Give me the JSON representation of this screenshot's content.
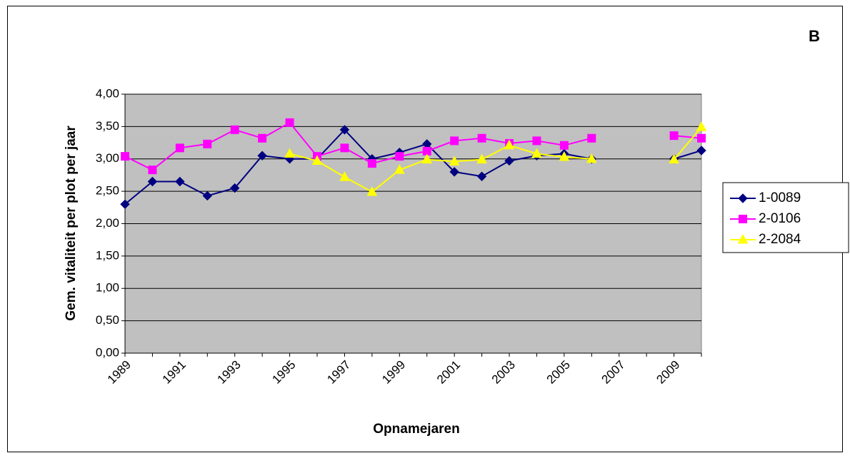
{
  "chart_data": {
    "type": "line",
    "corner_label": "B",
    "x_label": "Opnamejaren",
    "y_label": "Gem. vitaliteit per plot per jaar",
    "categories": [
      "1989",
      null,
      "1991",
      null,
      "1993",
      null,
      "1995",
      null,
      "1997",
      null,
      "1999",
      null,
      "2001",
      null,
      "2003",
      null,
      "2005",
      null,
      "2007",
      null,
      "2009",
      null
    ],
    "series": [
      {
        "name": "1-0089",
        "color": "#000080",
        "marker": "diamond",
        "values": [
          2.3,
          2.65,
          2.65,
          2.43,
          2.55,
          3.05,
          3.0,
          3.0,
          3.45,
          3.0,
          3.1,
          3.23,
          2.8,
          2.73,
          2.97,
          3.05,
          3.08,
          3.0,
          null,
          null,
          3.0,
          3.13
        ]
      },
      {
        "name": "2-0106",
        "color": "#ff00ff",
        "marker": "square",
        "values": [
          3.04,
          2.83,
          3.17,
          3.23,
          3.45,
          3.32,
          3.56,
          3.04,
          3.17,
          2.93,
          3.04,
          3.12,
          3.28,
          3.32,
          3.24,
          3.28,
          3.21,
          3.32,
          null,
          null,
          3.36,
          3.32
        ]
      },
      {
        "name": "2-2084",
        "color": "#ffff00",
        "marker": "triangle",
        "values": [
          null,
          null,
          null,
          null,
          null,
          null,
          3.08,
          2.97,
          2.72,
          2.49,
          2.83,
          2.99,
          2.96,
          2.99,
          3.21,
          3.08,
          3.03,
          3.0,
          null,
          null,
          2.99,
          3.49
        ]
      }
    ],
    "ylim": [
      0,
      4
    ],
    "yticks": [
      {
        "value": 0,
        "label": "0,00"
      },
      {
        "value": 0.5,
        "label": "0,50"
      },
      {
        "value": 1,
        "label": "1,00"
      },
      {
        "value": 1.5,
        "label": "1,50"
      },
      {
        "value": 2,
        "label": "2,00"
      },
      {
        "value": 2.5,
        "label": "2,50"
      },
      {
        "value": 3,
        "label": "3,00"
      },
      {
        "value": 3.5,
        "label": "3,50"
      },
      {
        "value": 4,
        "label": "4,00"
      }
    ],
    "grid": true,
    "plot_background": "#c0c0c0",
    "legend": "right"
  }
}
